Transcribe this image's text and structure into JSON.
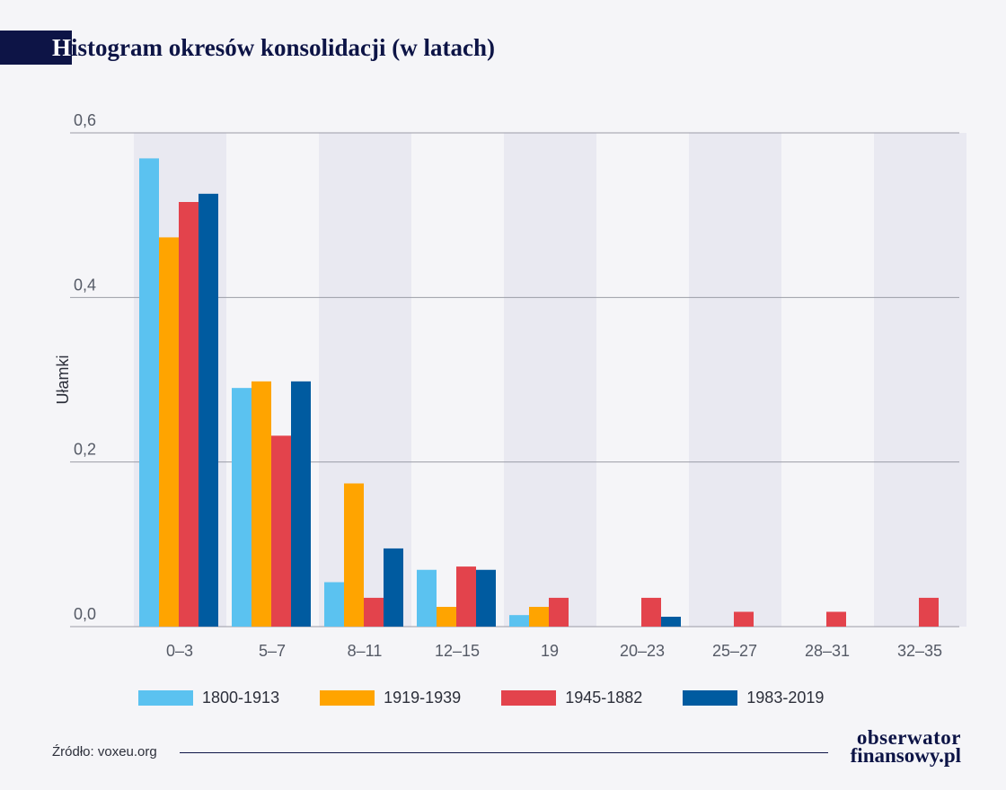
{
  "header": {
    "title_cap": "H",
    "title_rest": "istogram okresów konsolidacji (w latach)"
  },
  "chart_data": {
    "type": "bar",
    "title": "Histogram okresów konsolidacji (w latach)",
    "xlabel": "",
    "ylabel": "Ułamki",
    "ylim": [
      0,
      0.6
    ],
    "yticks": [
      "0,0",
      "0,2",
      "0,4",
      "0,6"
    ],
    "ytick_values": [
      0,
      0.2,
      0.4,
      0.6
    ],
    "categories": [
      "0–3",
      "5–7",
      "8–11",
      "12–15",
      "19",
      "20–23",
      "25–27",
      "28–31",
      "32–35"
    ],
    "series": [
      {
        "name": "1800-1913",
        "color": "#5bc2f0",
        "values": [
          0.569,
          0.29,
          0.054,
          0.069,
          0.014,
          null,
          null,
          null,
          null
        ]
      },
      {
        "name": "1919-1939",
        "color": "#ffa400",
        "values": [
          0.473,
          0.298,
          0.174,
          0.024,
          0.024,
          null,
          null,
          null,
          null
        ]
      },
      {
        "name": "1945-1882",
        "color": "#e3434c",
        "values": [
          0.516,
          0.232,
          0.035,
          0.073,
          0.035,
          0.035,
          0.018,
          0.018,
          0.035
        ]
      },
      {
        "name": "1983-2019",
        "color": "#005ba0",
        "values": [
          0.526,
          0.298,
          0.095,
          0.069,
          null,
          0.012,
          null,
          null,
          null
        ]
      }
    ],
    "grid": true,
    "legend": "bottom"
  },
  "footer": {
    "source": "Źródło: voxeu.org",
    "logo_line1": "obserwator",
    "logo_line2": "finansowy.pl"
  }
}
